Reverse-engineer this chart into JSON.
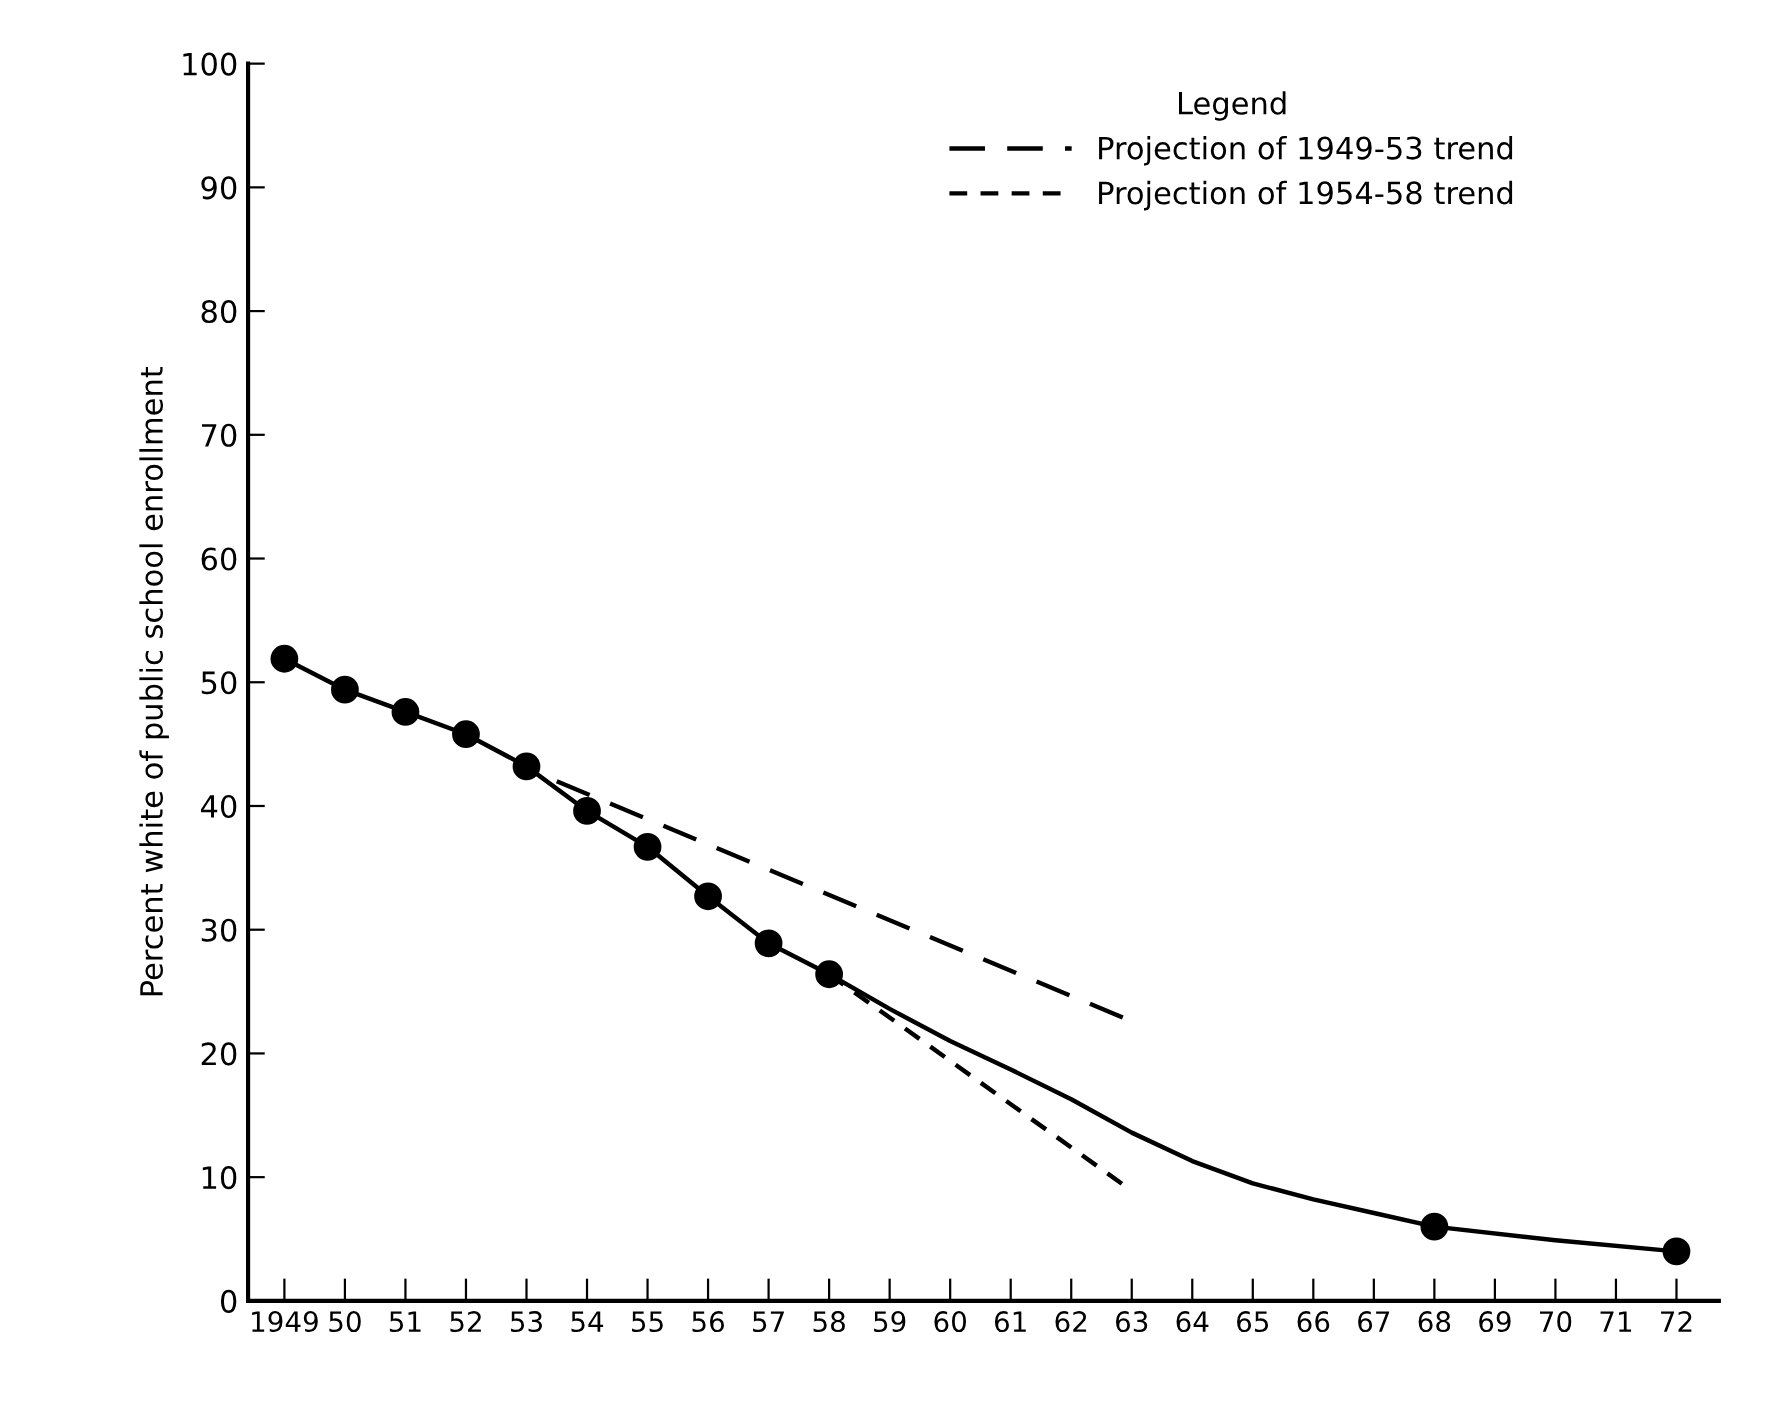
{
  "chart_data": {
    "type": "line",
    "ylabel": "Percent white of public school enrollment",
    "legend_title": "Legend",
    "legend": "top right",
    "grid": false,
    "xlim": [
      1948.4,
      1972.7
    ],
    "ylim": [
      0,
      100
    ],
    "xticks": [
      1949,
      {
        "value": 1950,
        "label": "50"
      },
      {
        "value": 1951,
        "label": "51"
      },
      {
        "value": 1952,
        "label": "52"
      },
      {
        "value": 1953,
        "label": "53"
      },
      {
        "value": 1954,
        "label": "54"
      },
      {
        "value": 1955,
        "label": "55"
      },
      {
        "value": 1956,
        "label": "56"
      },
      {
        "value": 1957,
        "label": "57"
      },
      {
        "value": 1958,
        "label": "58"
      },
      {
        "value": 1959,
        "label": "59"
      },
      {
        "value": 1960,
        "label": "60"
      },
      {
        "value": 1961,
        "label": "61"
      },
      {
        "value": 1962,
        "label": "62"
      },
      {
        "value": 1963,
        "label": "63"
      },
      {
        "value": 1964,
        "label": "64"
      },
      {
        "value": 1965,
        "label": "65"
      },
      {
        "value": 1966,
        "label": "66"
      },
      {
        "value": 1967,
        "label": "67"
      },
      {
        "value": 1968,
        "label": "68"
      },
      {
        "value": 1969,
        "label": "69"
      },
      {
        "value": 1970,
        "label": "70"
      },
      {
        "value": 1971,
        "label": "71"
      },
      {
        "value": 1972,
        "label": "72"
      }
    ],
    "yticks": [
      0,
      10,
      20,
      30,
      40,
      50,
      60,
      70,
      80,
      90,
      100
    ],
    "series": [
      {
        "color": "#000000",
        "marker": "circle",
        "line_style": "solid",
        "x": [
          1949,
          1950,
          1951,
          1952,
          1953,
          1954,
          1955,
          1956,
          1957,
          1958
        ],
        "values": [
          51.9,
          49.4,
          47.6,
          45.8,
          43.2,
          39.6,
          36.7,
          32.7,
          28.9,
          26.4
        ]
      },
      {
        "color": "#000000",
        "marker": "none",
        "line_style": "solid",
        "x": [
          1958,
          1959,
          1960,
          1961,
          1962,
          1963,
          1964,
          1965,
          1966,
          1967,
          1968,
          1970,
          1972
        ],
        "values": [
          26.4,
          23.6,
          21.0,
          18.7,
          16.3,
          13.6,
          11.3,
          9.5,
          8.2,
          7.1,
          6.0,
          4.9,
          4.0
        ]
      },
      {
        "type": "scatter",
        "color": "#000000",
        "marker": "circle",
        "x": [
          1968,
          1972
        ],
        "values": [
          6.0,
          4.0
        ]
      },
      {
        "name": "Projection of 1949-53 trend",
        "color": "#000000",
        "marker": "none",
        "line_style": "dashed",
        "x": [
          1953.5,
          1963
        ],
        "values": [
          42.0,
          22.6
        ]
      },
      {
        "name": "Projection of 1954-58 trend",
        "color": "#000000",
        "marker": "none",
        "line_style": "dotted",
        "x": [
          1958,
          1963
        ],
        "values": [
          26.4,
          8.9
        ]
      }
    ]
  }
}
